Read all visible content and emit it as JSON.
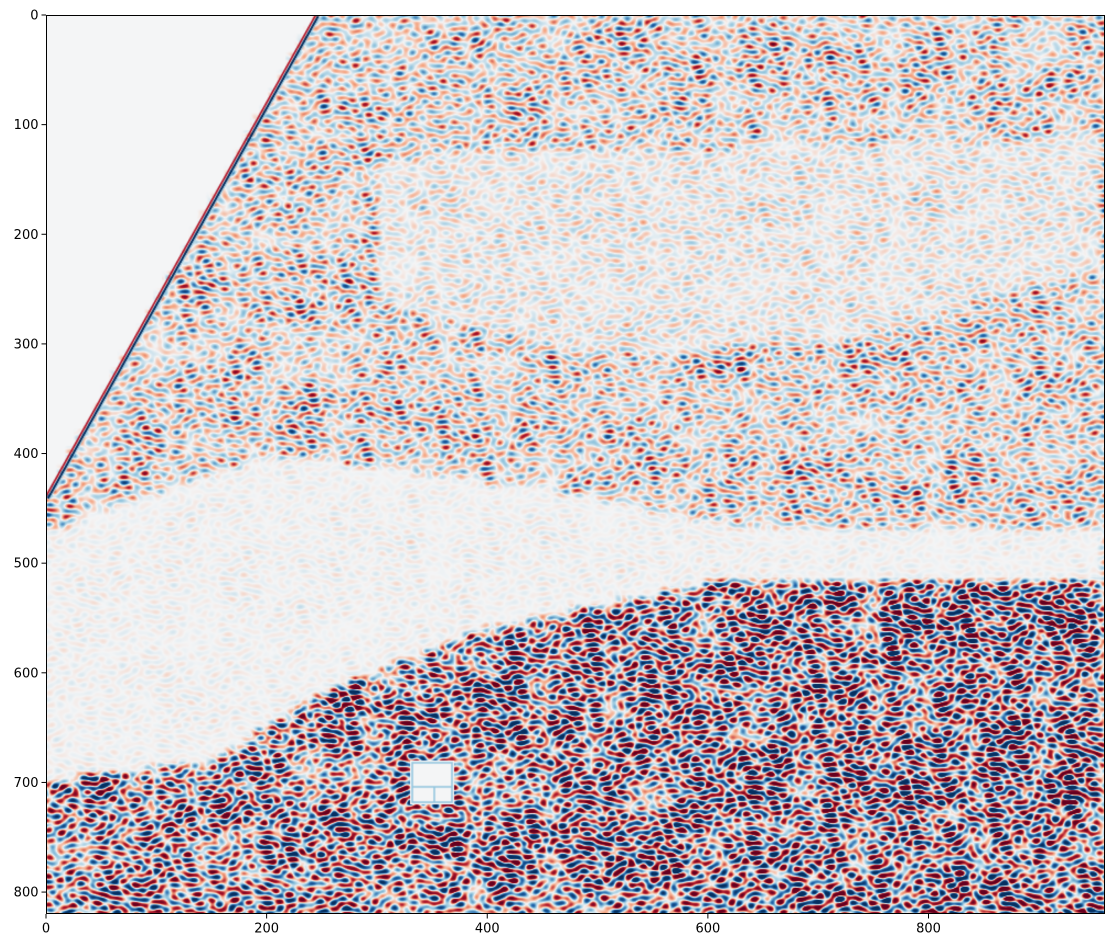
{
  "chart_data": {
    "type": "heatmap",
    "title": "",
    "xlabel": "",
    "ylabel": "",
    "colormap": "RdBu_r",
    "colors": {
      "neutral": "#f4f5f6",
      "positive": "#b2182b",
      "positive_light": "#f4a582",
      "negative": "#2166ac",
      "negative_deep": "#053061",
      "negative_light": "#92c5de"
    },
    "image_width": 960,
    "image_height": 820,
    "xlim": [
      0,
      960
    ],
    "ylim": [
      820,
      0
    ],
    "x_ticks": [
      0,
      200,
      400,
      600,
      800
    ],
    "y_ticks": [
      0,
      100,
      200,
      300,
      400,
      500,
      600,
      700,
      800
    ],
    "x_tick_labels": [
      "0",
      "200",
      "400",
      "600",
      "800"
    ],
    "y_tick_labels": [
      "0",
      "100",
      "200",
      "300",
      "400",
      "500",
      "600",
      "700",
      "800"
    ],
    "features": [
      {
        "name": "blank-corner",
        "polygon": [
          [
            0,
            0
          ],
          [
            245,
            0
          ],
          [
            0,
            440
          ]
        ],
        "value": 0
      },
      {
        "name": "diagonal-edge-line",
        "from": [
          245,
          0
        ],
        "to": [
          0,
          440
        ]
      },
      {
        "name": "smooth-band",
        "polygon": [
          [
            300,
            130
          ],
          [
            960,
            110
          ],
          [
            960,
            230
          ],
          [
            700,
            300
          ],
          [
            480,
            310
          ],
          [
            300,
            260
          ]
        ],
        "texture": 0.15
      },
      {
        "name": "smooth-belt",
        "polygon": [
          [
            0,
            470
          ],
          [
            200,
            400
          ],
          [
            450,
            430
          ],
          [
            650,
            470
          ],
          [
            960,
            470
          ],
          [
            960,
            520
          ],
          [
            600,
            520
          ],
          [
            400,
            560
          ],
          [
            250,
            620
          ],
          [
            150,
            680
          ],
          [
            0,
            700
          ]
        ],
        "texture": 0.05
      },
      {
        "name": "dense-textured-region",
        "polygon": [
          [
            0,
            700
          ],
          [
            150,
            680
          ],
          [
            250,
            620
          ],
          [
            400,
            560
          ],
          [
            600,
            520
          ],
          [
            960,
            520
          ],
          [
            960,
            820
          ],
          [
            0,
            820
          ]
        ],
        "texture": 1.0
      },
      {
        "name": "square-structure",
        "center": [
          350,
          700
        ],
        "size": 20
      }
    ],
    "grid": false,
    "legend": "none"
  }
}
